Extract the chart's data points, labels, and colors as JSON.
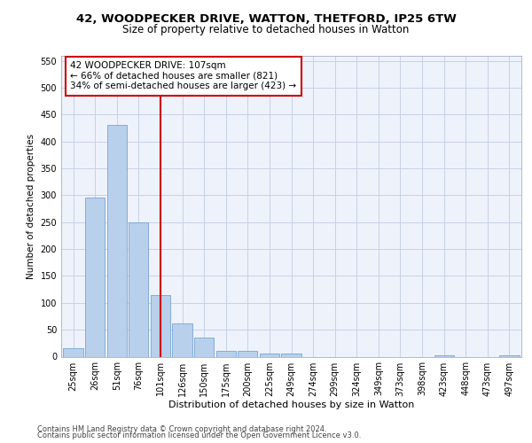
{
  "title1": "42, WOODPECKER DRIVE, WATTON, THETFORD, IP25 6TW",
  "title2": "Size of property relative to detached houses in Watton",
  "xlabel": "Distribution of detached houses by size in Watton",
  "ylabel": "Number of detached properties",
  "categories": [
    "25sqm",
    "26sqm",
    "51sqm",
    "76sqm",
    "101sqm",
    "126sqm",
    "150sqm",
    "175sqm",
    "200sqm",
    "225sqm",
    "249sqm",
    "274sqm",
    "299sqm",
    "324sqm",
    "349sqm",
    "373sqm",
    "398sqm",
    "423sqm",
    "448sqm",
    "473sqm",
    "497sqm"
  ],
  "values": [
    15,
    295,
    430,
    250,
    115,
    62,
    35,
    10,
    10,
    5,
    5,
    0,
    0,
    0,
    0,
    0,
    0,
    3,
    0,
    0,
    3
  ],
  "bar_color": "#b8d0eb",
  "bar_edgecolor": "#6699cc",
  "annotation_line1": "42 WOODPECKER DRIVE: 107sqm",
  "annotation_line2": "← 66% of detached houses are smaller (821)",
  "annotation_line3": "34% of semi-detached houses are larger (423) →",
  "annotation_box_edgecolor": "#cc0000",
  "vline_x_index": 4.0,
  "vline_color": "#cc0000",
  "ylim": [
    0,
    560
  ],
  "yticks": [
    0,
    50,
    100,
    150,
    200,
    250,
    300,
    350,
    400,
    450,
    500,
    550
  ],
  "footer1": "Contains HM Land Registry data © Crown copyright and database right 2024.",
  "footer2": "Contains public sector information licensed under the Open Government Licence v3.0.",
  "bg_color": "#eef2fb",
  "grid_color": "#c8d0e8",
  "title1_fontsize": 9.5,
  "title2_fontsize": 8.5,
  "xlabel_fontsize": 8.0,
  "ylabel_fontsize": 7.5,
  "tick_fontsize": 7.0,
  "ann_fontsize": 7.5,
  "footer_fontsize": 6.0
}
